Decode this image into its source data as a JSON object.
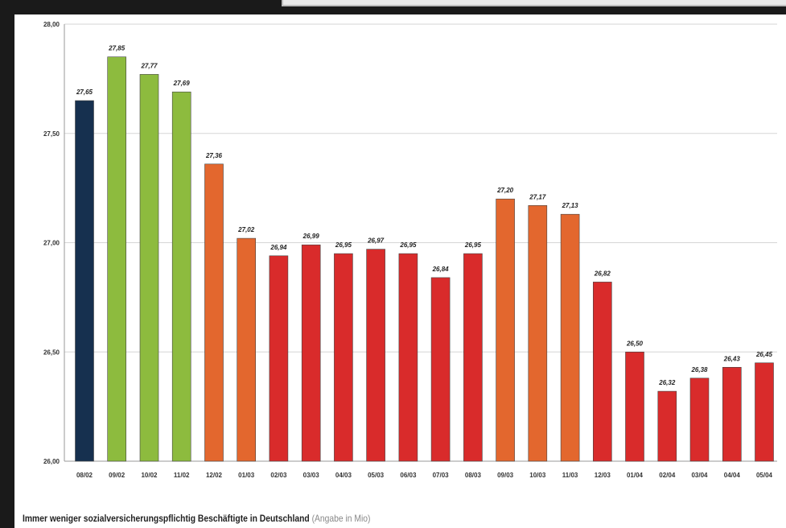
{
  "chart_data": {
    "type": "bar",
    "categories": [
      "08/02",
      "09/02",
      "10/02",
      "11/02",
      "12/02",
      "01/03",
      "02/03",
      "03/03",
      "04/03",
      "05/03",
      "06/03",
      "07/03",
      "08/03",
      "09/03",
      "10/03",
      "11/03",
      "12/03",
      "01/04",
      "02/04",
      "03/04",
      "04/04",
      "05/04"
    ],
    "values": [
      27.65,
      27.85,
      27.77,
      27.69,
      27.36,
      27.02,
      26.94,
      26.99,
      26.95,
      26.97,
      26.95,
      26.84,
      26.95,
      27.2,
      27.17,
      27.13,
      26.82,
      26.5,
      26.32,
      26.38,
      26.43,
      26.45
    ],
    "value_labels": [
      "27,65",
      "27,85",
      "27,77",
      "27,69",
      "27,36",
      "27,02",
      "26,94",
      "26,99",
      "26,95",
      "26,97",
      "26,95",
      "26,84",
      "26,95",
      "27,20",
      "27,17",
      "27,13",
      "26,82",
      "26,50",
      "26,32",
      "26,38",
      "26,43",
      "26,45"
    ],
    "bar_colors": [
      "#16304f",
      "#8dbb3e",
      "#8dbb3e",
      "#8dbb3e",
      "#e3672e",
      "#e3672e",
      "#d92b2b",
      "#d92b2b",
      "#d92b2b",
      "#d92b2b",
      "#d92b2b",
      "#d92b2b",
      "#d92b2b",
      "#e3672e",
      "#e3672e",
      "#e3672e",
      "#d92b2b",
      "#d92b2b",
      "#d92b2b",
      "#d92b2b",
      "#d92b2b",
      "#d92b2b"
    ],
    "ylim": [
      26.0,
      28.0
    ],
    "yticks": [
      26.0,
      26.5,
      27.0,
      27.5,
      28.0
    ],
    "ytick_labels": [
      "26,00",
      "26,50",
      "27,00",
      "27,50",
      "28,00"
    ],
    "grid": true,
    "caption": "Immer weniger sozialversicherungspflichtig Beschäftigte in Deutschland",
    "caption_unit": "(Angabe in Mio)"
  }
}
